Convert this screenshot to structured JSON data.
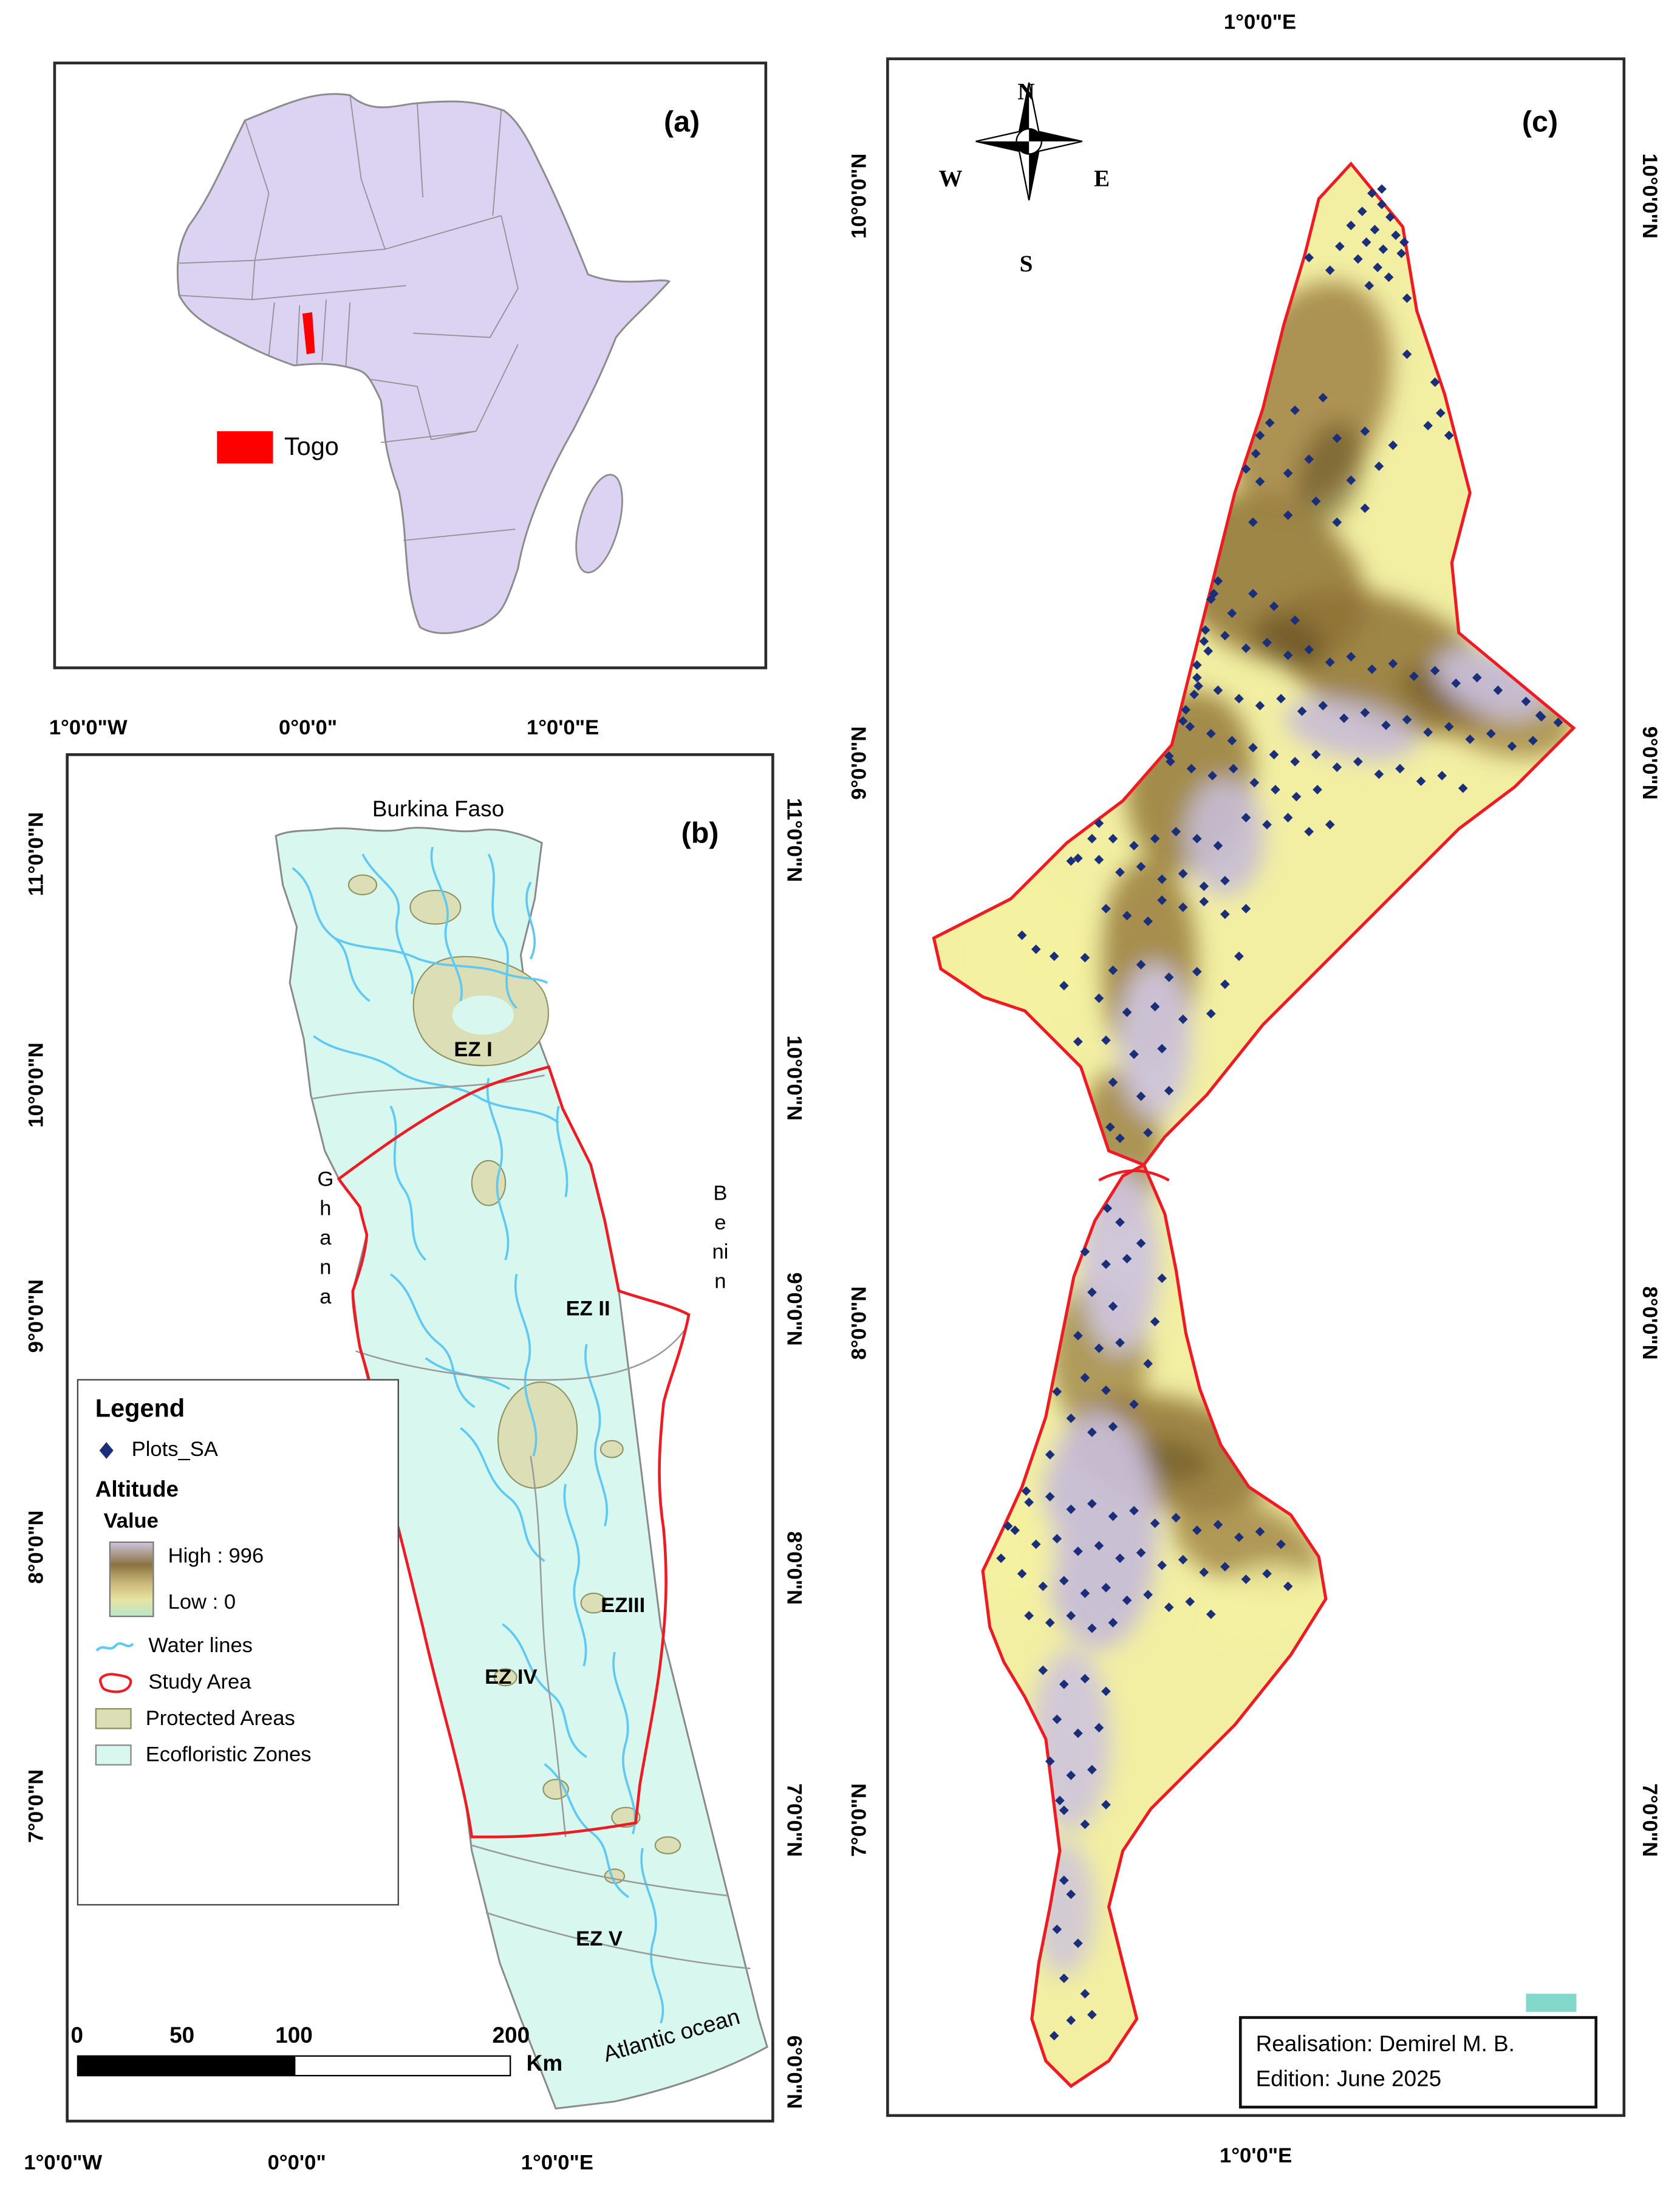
{
  "figure": {
    "panel_a_label": "(a)",
    "panel_b_label": "(b)",
    "panel_c_label": "(c)"
  },
  "panel_a": {
    "legend_togo": "Togo"
  },
  "panel_b": {
    "axis_top": [
      "1°0'0\"W",
      "0°0'0\"",
      "1°0'0\"E"
    ],
    "axis_bottom": [
      "1°0'0\"W",
      "0°0'0\"",
      "1°0'0\"E"
    ],
    "axis_left": [
      "11°0'0\"N",
      "10°0'0\"N",
      "9°0'0\"N",
      "8°0'0\"N",
      "7°0'0\"N"
    ],
    "axis_right": [
      "11°0'0\"N",
      "10°0'0\"N",
      "9°0'0\"N",
      "8°0'0\"N",
      "7°0'0\"N",
      "6°0'0\"N"
    ],
    "labels": {
      "burkina_faso": "Burkina Faso",
      "ghana": "Ghana",
      "benin": "Benin",
      "atlantic_ocean": "Atlantic ocean",
      "ez1": "EZ I",
      "ez2": "EZ II",
      "ez3": "EZIII",
      "ez4": "EZ IV",
      "ez5": "EZ V"
    },
    "legend": {
      "title": "Legend",
      "plots": "Plots_SA",
      "altitude": "Altitude",
      "value": "Value",
      "high": "High : 996",
      "low": "Low : 0",
      "water": "Water lines",
      "study": "Study Area",
      "protected": "Protected Areas",
      "eco": "Ecofloristic Zones"
    },
    "scalebar": {
      "t0": "0",
      "t1": "50",
      "t2": "100",
      "t3": "200",
      "unit": "Km"
    }
  },
  "panel_c": {
    "axis_top": "1°0'0\"E",
    "axis_bottom": "1°0'0\"E",
    "axis_left": [
      "10°0'0\"N",
      "9°0'0\"N",
      "8°0'0\"N",
      "7°0'0\"N"
    ],
    "axis_right": [
      "10°0'0\"N",
      "9°0'0\"N",
      "8°0'0\"N",
      "7°0'0\"N"
    ],
    "compass": {
      "n": "N",
      "e": "E",
      "s": "S",
      "w": "W"
    },
    "credits": {
      "line1": "Realisation: Demirel M. B.",
      "line2": "Edition: June 2025"
    },
    "plot_points": [
      [
        345,
        95
      ],
      [
        352,
        103
      ],
      [
        338,
        108
      ],
      [
        358,
        112
      ],
      [
        330,
        118
      ],
      [
        347,
        121
      ],
      [
        362,
        125
      ],
      [
        341,
        130
      ],
      [
        353,
        135
      ],
      [
        366,
        138
      ],
      [
        335,
        142
      ],
      [
        349,
        148
      ],
      [
        322,
        133
      ],
      [
        315,
        150
      ],
      [
        357,
        155
      ],
      [
        343,
        161
      ],
      [
        370,
        170
      ],
      [
        300,
        141
      ],
      [
        352,
        92
      ],
      [
        368,
        130
      ],
      [
        272,
        259
      ],
      [
        290,
        250
      ],
      [
        310,
        241
      ],
      [
        262,
        281
      ],
      [
        300,
        285
      ],
      [
        320,
        270
      ],
      [
        340,
        265
      ],
      [
        265,
        301
      ],
      [
        285,
        295
      ],
      [
        330,
        300
      ],
      [
        350,
        290
      ],
      [
        360,
        275
      ],
      [
        265,
        268
      ],
      [
        255,
        292
      ],
      [
        370,
        210
      ],
      [
        390,
        230
      ],
      [
        394,
        252
      ],
      [
        385,
        261
      ],
      [
        400,
        268
      ],
      [
        305,
        315
      ],
      [
        285,
        325
      ],
      [
        320,
        330
      ],
      [
        260,
        330
      ],
      [
        340,
        320
      ],
      [
        232,
        381
      ],
      [
        235,
        372
      ],
      [
        230,
        385
      ],
      [
        245,
        395
      ],
      [
        260,
        381
      ],
      [
        275,
        390
      ],
      [
        290,
        400
      ],
      [
        226,
        407
      ],
      [
        225,
        415
      ],
      [
        240,
        411
      ],
      [
        255,
        420
      ],
      [
        270,
        416
      ],
      [
        285,
        425
      ],
      [
        300,
        421
      ],
      [
        315,
        430
      ],
      [
        330,
        426
      ],
      [
        345,
        435
      ],
      [
        360,
        431
      ],
      [
        375,
        440
      ],
      [
        390,
        436
      ],
      [
        405,
        445
      ],
      [
        420,
        441
      ],
      [
        435,
        450
      ],
      [
        455,
        458
      ],
      [
        465,
        468
      ],
      [
        228,
        422
      ],
      [
        220,
        432
      ],
      [
        221,
        447
      ],
      [
        220,
        441
      ],
      [
        235,
        450
      ],
      [
        250,
        456
      ],
      [
        265,
        461
      ],
      [
        280,
        456
      ],
      [
        295,
        465
      ],
      [
        310,
        461
      ],
      [
        325,
        470
      ],
      [
        340,
        466
      ],
      [
        355,
        475
      ],
      [
        370,
        471
      ],
      [
        385,
        480
      ],
      [
        400,
        476
      ],
      [
        415,
        485
      ],
      [
        430,
        481
      ],
      [
        445,
        490
      ],
      [
        460,
        486
      ],
      [
        218,
        453
      ],
      [
        212,
        464
      ],
      [
        210,
        472
      ],
      [
        215,
        476
      ],
      [
        230,
        481
      ],
      [
        245,
        486
      ],
      [
        260,
        491
      ],
      [
        275,
        496
      ],
      [
        290,
        501
      ],
      [
        305,
        496
      ],
      [
        320,
        505
      ],
      [
        335,
        501
      ],
      [
        350,
        510
      ],
      [
        365,
        506
      ],
      [
        380,
        515
      ],
      [
        395,
        511
      ],
      [
        410,
        520
      ],
      [
        246,
        506
      ],
      [
        231,
        511
      ],
      [
        216,
        506
      ],
      [
        201,
        501
      ],
      [
        200,
        497
      ],
      [
        261,
        516
      ],
      [
        276,
        521
      ],
      [
        291,
        526
      ],
      [
        306,
        521
      ],
      [
        466,
        469
      ],
      [
        478,
        473
      ],
      [
        95,
        625
      ],
      [
        105,
        635
      ],
      [
        118,
        640
      ],
      [
        135,
        570
      ],
      [
        130,
        572
      ],
      [
        150,
        545
      ],
      [
        145,
        556
      ],
      [
        160,
        556
      ],
      [
        175,
        561
      ],
      [
        190,
        556
      ],
      [
        205,
        551
      ],
      [
        220,
        556
      ],
      [
        235,
        561
      ],
      [
        150,
        571
      ],
      [
        165,
        580
      ],
      [
        180,
        576
      ],
      [
        195,
        585
      ],
      [
        210,
        581
      ],
      [
        225,
        590
      ],
      [
        240,
        586
      ],
      [
        195,
        600
      ],
      [
        210,
        605
      ],
      [
        225,
        601
      ],
      [
        240,
        610
      ],
      [
        255,
        606
      ],
      [
        185,
        615
      ],
      [
        170,
        611
      ],
      [
        155,
        606
      ],
      [
        255,
        541
      ],
      [
        270,
        546
      ],
      [
        285,
        541
      ],
      [
        300,
        551
      ],
      [
        315,
        546
      ],
      [
        140,
        641
      ],
      [
        160,
        650
      ],
      [
        180,
        646
      ],
      [
        200,
        655
      ],
      [
        220,
        651
      ],
      [
        150,
        670
      ],
      [
        170,
        680
      ],
      [
        190,
        676
      ],
      [
        210,
        685
      ],
      [
        230,
        681
      ],
      [
        155,
        700
      ],
      [
        175,
        710
      ],
      [
        195,
        706
      ],
      [
        160,
        730
      ],
      [
        180,
        740
      ],
      [
        200,
        736
      ],
      [
        158,
        762
      ],
      [
        165,
        770
      ],
      [
        185,
        766
      ],
      [
        135,
        701
      ],
      [
        125,
        661
      ],
      [
        240,
        660
      ],
      [
        250,
        640
      ],
      [
        156,
        820
      ],
      [
        165,
        830
      ],
      [
        140,
        851
      ],
      [
        155,
        860
      ],
      [
        170,
        856
      ],
      [
        145,
        880
      ],
      [
        160,
        890
      ],
      [
        135,
        911
      ],
      [
        150,
        920
      ],
      [
        165,
        916
      ],
      [
        140,
        941
      ],
      [
        155,
        950
      ],
      [
        130,
        970
      ],
      [
        145,
        980
      ],
      [
        160,
        976
      ],
      [
        175,
        960
      ],
      [
        185,
        931
      ],
      [
        190,
        901
      ],
      [
        120,
        951
      ],
      [
        115,
        996
      ],
      [
        180,
        845
      ],
      [
        195,
        870
      ],
      [
        98,
        1022
      ],
      [
        100,
        1030
      ],
      [
        115,
        1026
      ],
      [
        130,
        1035
      ],
      [
        145,
        1031
      ],
      [
        160,
        1040
      ],
      [
        175,
        1036
      ],
      [
        190,
        1045
      ],
      [
        205,
        1041
      ],
      [
        220,
        1050
      ],
      [
        235,
        1046
      ],
      [
        250,
        1055
      ],
      [
        265,
        1051
      ],
      [
        280,
        1060
      ],
      [
        90,
        1050
      ],
      [
        105,
        1060
      ],
      [
        120,
        1056
      ],
      [
        135,
        1065
      ],
      [
        150,
        1061
      ],
      [
        165,
        1070
      ],
      [
        180,
        1066
      ],
      [
        195,
        1075
      ],
      [
        210,
        1071
      ],
      [
        225,
        1080
      ],
      [
        240,
        1076
      ],
      [
        255,
        1085
      ],
      [
        270,
        1081
      ],
      [
        285,
        1090
      ],
      [
        95,
        1081
      ],
      [
        110,
        1090
      ],
      [
        125,
        1086
      ],
      [
        140,
        1095
      ],
      [
        155,
        1091
      ],
      [
        170,
        1100
      ],
      [
        185,
        1096
      ],
      [
        200,
        1105
      ],
      [
        215,
        1101
      ],
      [
        230,
        1110
      ],
      [
        100,
        1111
      ],
      [
        115,
        1116
      ],
      [
        130,
        1111
      ],
      [
        145,
        1120
      ],
      [
        160,
        1116
      ],
      [
        85,
        1047
      ],
      [
        80,
        1070
      ],
      [
        110,
        1150
      ],
      [
        125,
        1160
      ],
      [
        140,
        1156
      ],
      [
        155,
        1165
      ],
      [
        120,
        1185
      ],
      [
        135,
        1195
      ],
      [
        150,
        1191
      ],
      [
        115,
        1215
      ],
      [
        130,
        1225
      ],
      [
        145,
        1221
      ],
      [
        125,
        1250
      ],
      [
        140,
        1260
      ],
      [
        122,
        1243
      ],
      [
        155,
        1246
      ],
      [
        125,
        1300
      ],
      [
        130,
        1310
      ],
      [
        120,
        1335
      ],
      [
        135,
        1345
      ],
      [
        125,
        1370
      ],
      [
        140,
        1381
      ],
      [
        130,
        1400
      ],
      [
        145,
        1396
      ],
      [
        118,
        1411
      ]
    ]
  },
  "colors": {
    "togo_red": "#ff0000",
    "study_area_red": "#ed1c24",
    "plots_navy": "#1b2e7a",
    "water_blue": "#5fc9f2",
    "eco_cyan": "#d7f7ef",
    "protected_olive": "#dcdfb5",
    "africa_lavender": "#dcd2f2",
    "elev_low": "#f2efa3",
    "elev_mid": "#8f7335",
    "elev_high": "#c7bdd6"
  }
}
